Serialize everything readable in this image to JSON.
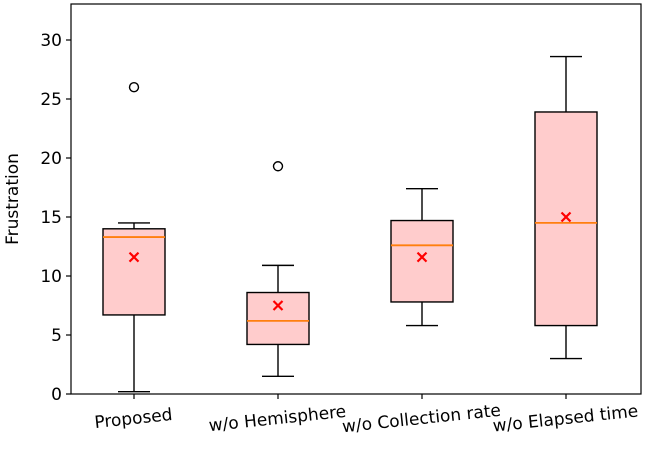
{
  "chart_data": {
    "type": "box",
    "title": "",
    "xlabel": "",
    "ylabel": "Frustration",
    "ylim": [
      0,
      33
    ],
    "yticks": [
      0,
      5,
      10,
      15,
      20,
      25,
      30
    ],
    "grid": false,
    "legend": "none",
    "colors": {
      "box_fill": "#ffcccc",
      "box_edge": "#000000",
      "median": "#ff7f0e",
      "mean_marker": "#ff0000"
    },
    "categories": [
      "Proposed",
      "w/o Hemisphere",
      "w/o Collection rate",
      "w/o Elapsed time"
    ],
    "boxes": [
      {
        "whisker_low": 0.2,
        "q1": 6.7,
        "median": 13.3,
        "q3": 14.0,
        "whisker_high": 14.5,
        "mean": 11.6,
        "outliers": [
          26.0
        ]
      },
      {
        "whisker_low": 1.5,
        "q1": 4.2,
        "median": 6.2,
        "q3": 8.6,
        "whisker_high": 10.9,
        "mean": 7.5,
        "outliers": [
          19.3
        ]
      },
      {
        "whisker_low": 5.8,
        "q1": 7.8,
        "median": 12.6,
        "q3": 14.7,
        "whisker_high": 17.4,
        "mean": 11.6,
        "outliers": []
      },
      {
        "whisker_low": 3.0,
        "q1": 5.8,
        "median": 14.5,
        "q3": 23.9,
        "whisker_high": 28.6,
        "mean": 15.0,
        "outliers": []
      }
    ]
  }
}
